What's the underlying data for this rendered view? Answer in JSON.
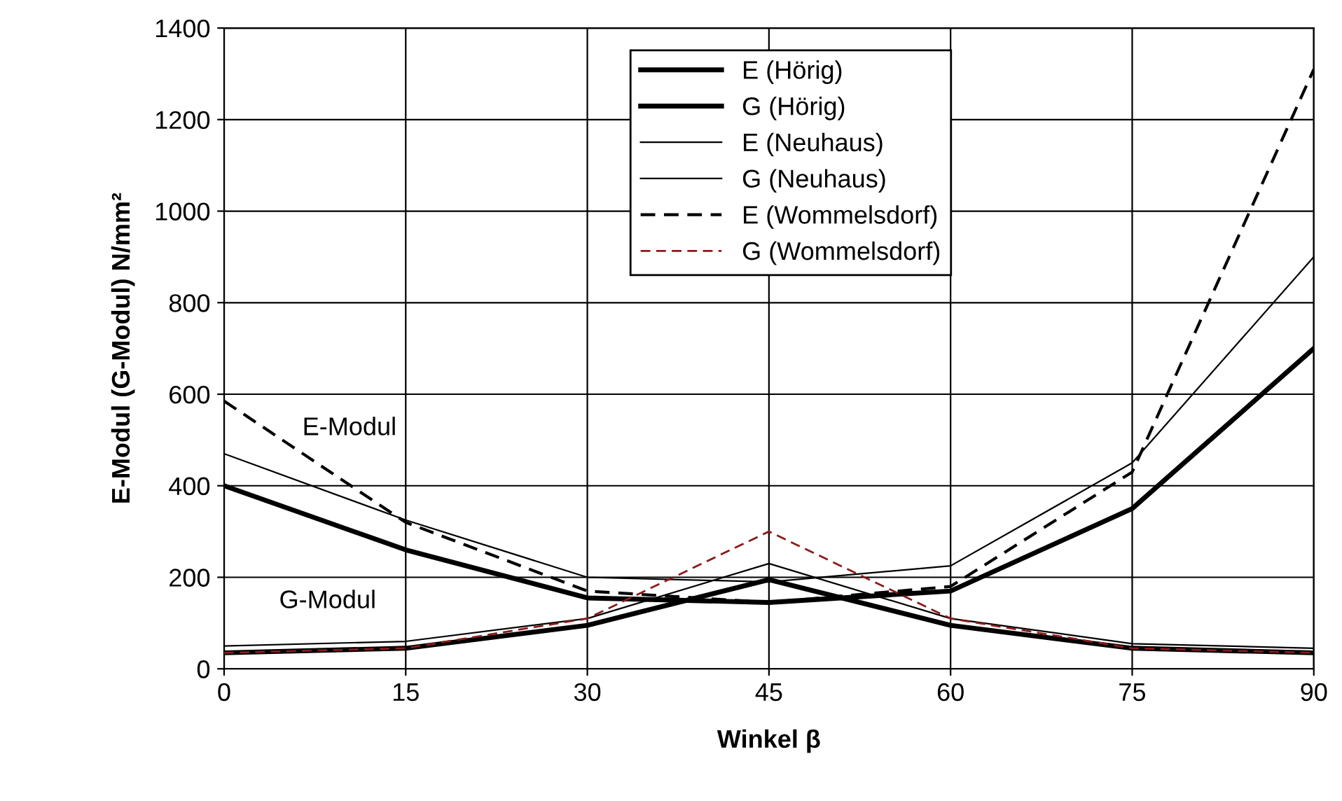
{
  "chart_data": {
    "type": "line",
    "xlabel": "Winkel β",
    "ylabel": "E-Modul (G-Modul) N/mm²",
    "x": [
      0,
      15,
      30,
      45,
      60,
      75,
      90
    ],
    "xlim": [
      0,
      90
    ],
    "xticks": [
      0,
      15,
      30,
      45,
      60,
      75,
      90
    ],
    "ylim": [
      0,
      1400
    ],
    "yticks": [
      0,
      200,
      400,
      600,
      800,
      1000,
      1200,
      1400
    ],
    "grid": true,
    "legend": "top",
    "marker": "none",
    "series": [
      {
        "name": "E (Hörig)",
        "color": "#000000",
        "line_style": "solid",
        "values": [
          400,
          260,
          155,
          145,
          170,
          350,
          700
        ]
      },
      {
        "name": "G (Hörig)",
        "color": "#000000",
        "line_style": "solid",
        "values": [
          35,
          45,
          95,
          195,
          95,
          45,
          35
        ]
      },
      {
        "name": "E (Neuhaus)",
        "color": "#000000",
        "line_style": "solid",
        "values": [
          470,
          325,
          200,
          190,
          225,
          450,
          900
        ]
      },
      {
        "name": "G (Neuhaus)",
        "color": "#000000",
        "line_style": "solid",
        "values": [
          50,
          60,
          110,
          230,
          110,
          55,
          45
        ]
      },
      {
        "name": "E (Wommelsdorf)",
        "color": "#000000",
        "line_style": "dashed",
        "values": [
          585,
          320,
          170,
          145,
          180,
          430,
          1310
        ]
      },
      {
        "name": "G (Wommelsdorf)",
        "color": "#8b1a1a",
        "line_style": "dashed",
        "values": [
          35,
          45,
          110,
          300,
          110,
          45,
          35
        ]
      }
    ],
    "annotations": [
      "E-Modul",
      "G-Modul"
    ]
  }
}
